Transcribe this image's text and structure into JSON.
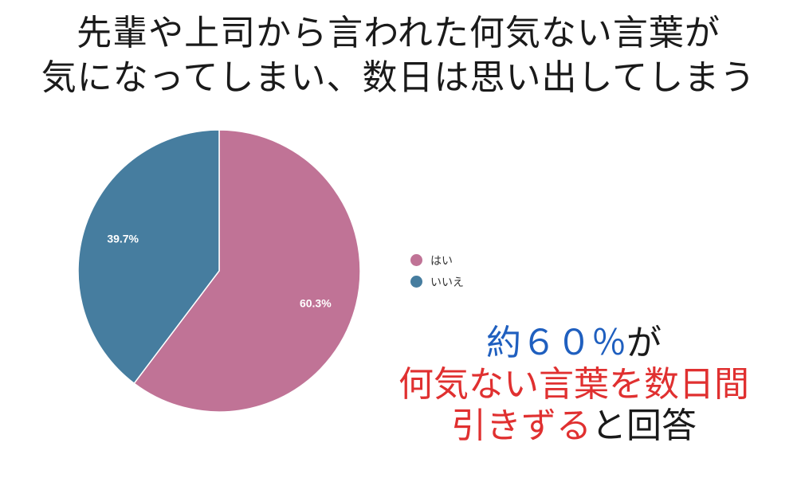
{
  "title": {
    "line1": "先輩や上司から言われた何気ない言葉が",
    "line2": "気になってしまい、数日は思い出してしまう"
  },
  "chart_data": {
    "type": "pie",
    "categories": [
      "はい",
      "いいえ"
    ],
    "values": [
      60.3,
      39.7
    ],
    "value_labels": [
      "60.3%",
      "39.7%"
    ],
    "colors": [
      "#c07396",
      "#467d9f"
    ],
    "start_angle_deg": 0,
    "direction": "clockwise",
    "legend_position": "right"
  },
  "callout": {
    "line1_highlight": "約６０％",
    "line1_rest": "が",
    "line2": "何気ない言葉を数日間",
    "line3_highlight": "引きずる",
    "line3_rest": "と回答",
    "colors": {
      "blue": "#1f5fbf",
      "red": "#e03030",
      "dark": "#1a1a1a"
    }
  }
}
